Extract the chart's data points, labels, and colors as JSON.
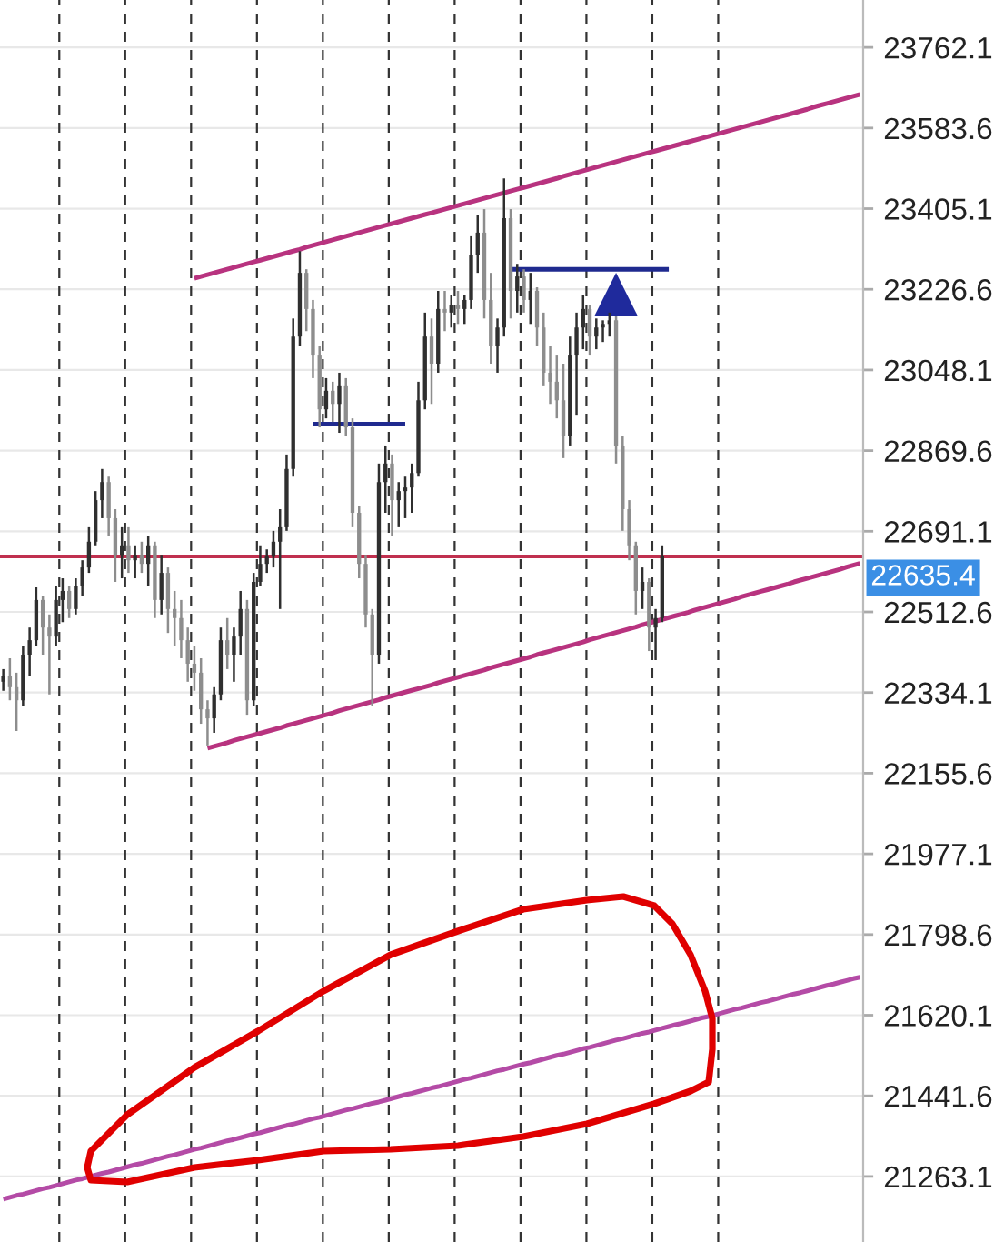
{
  "chart_data": {
    "type": "candlestick",
    "categories": [
      null,
      null,
      null,
      null,
      null,
      null,
      null,
      null,
      null,
      null,
      null,
      null,
      null,
      null,
      null,
      null,
      null,
      null,
      null,
      null,
      null,
      null,
      null,
      null,
      null,
      null,
      null,
      null,
      null,
      null,
      null,
      null,
      null,
      null,
      null,
      null,
      null,
      null,
      null,
      null,
      null,
      null,
      null,
      null,
      null,
      null,
      null,
      null,
      null,
      null,
      null,
      null,
      null,
      null,
      null,
      null,
      null,
      null,
      null,
      null,
      null,
      null,
      null,
      null,
      null,
      null,
      null,
      null,
      null,
      null,
      null,
      null,
      null,
      null,
      null,
      null,
      null,
      null,
      null,
      null,
      null,
      null,
      null,
      null,
      null,
      null,
      null,
      null,
      null,
      null,
      null,
      null,
      null,
      null,
      null,
      null,
      null,
      null,
      null,
      null,
      null,
      null,
      null,
      null,
      null,
      null,
      null,
      null,
      null,
      null,
      null,
      null,
      null,
      null,
      null,
      null,
      null,
      null,
      null,
      null,
      null,
      null,
      null,
      null,
      null,
      null,
      null,
      null,
      null,
      null,
      null
    ],
    "ohlc": [
      [
        22358,
        22386,
        22338,
        22370
      ],
      [
        22370,
        22410,
        22317,
        22346
      ],
      [
        22346,
        22378,
        22249,
        22317
      ],
      [
        22317,
        22438,
        22305,
        22418
      ],
      [
        22418,
        22478,
        22370,
        22450
      ],
      [
        22450,
        22567,
        22438,
        22539
      ],
      [
        22539,
        22547,
        22418,
        22478
      ],
      [
        22478,
        22507,
        22330,
        22458
      ],
      [
        22458,
        22571,
        22438,
        22539
      ],
      [
        22539,
        22587,
        22490,
        22559
      ],
      [
        22559,
        22571,
        22499,
        22519
      ],
      [
        22519,
        22587,
        22507,
        22571
      ],
      [
        22571,
        22627,
        22547,
        22611
      ],
      [
        22611,
        22700,
        22599,
        22668
      ],
      [
        22668,
        22780,
        22660,
        22760
      ],
      [
        22760,
        22829,
        22720,
        22800
      ],
      [
        22800,
        22812,
        22680,
        22720
      ],
      [
        22720,
        22740,
        22579,
        22639
      ],
      [
        22639,
        22700,
        22587,
        22660
      ],
      [
        22660,
        22700,
        22599,
        22627
      ],
      [
        22627,
        22660,
        22587,
        22639
      ],
      [
        22639,
        22668,
        22599,
        22619
      ],
      [
        22619,
        22680,
        22571,
        22660
      ],
      [
        22660,
        22668,
        22499,
        22539
      ],
      [
        22539,
        22639,
        22507,
        22599
      ],
      [
        22599,
        22611,
        22466,
        22519
      ],
      [
        22519,
        22559,
        22438,
        22499
      ],
      [
        22499,
        22539,
        22410,
        22450
      ],
      [
        22450,
        22478,
        22358,
        22398
      ],
      [
        22398,
        22438,
        22338,
        22378
      ],
      [
        22378,
        22410,
        22265,
        22297
      ],
      [
        22297,
        22317,
        22217,
        22277
      ],
      [
        22277,
        22346,
        22245,
        22330
      ],
      [
        22330,
        22478,
        22317,
        22450
      ],
      [
        22450,
        22499,
        22386,
        22418
      ],
      [
        22418,
        22478,
        22358,
        22458
      ],
      [
        22458,
        22559,
        22418,
        22519
      ],
      [
        22519,
        22539,
        22285,
        22317
      ],
      [
        22317,
        22599,
        22305,
        22579
      ],
      [
        22579,
        22660,
        22571,
        22619
      ],
      [
        22619,
        22651,
        22599,
        22635
      ],
      [
        22635,
        22692,
        22611,
        22668
      ],
      [
        22668,
        22740,
        22519,
        22700
      ],
      [
        22700,
        22861,
        22692,
        22829
      ],
      [
        22829,
        23162,
        22812,
        23122
      ],
      [
        23122,
        23311,
        23102,
        23263
      ],
      [
        23263,
        23271,
        23134,
        23183
      ],
      [
        23183,
        23203,
        23030,
        23082
      ],
      [
        23082,
        23102,
        22921,
        22961
      ],
      [
        22961,
        23030,
        22941,
        23002
      ],
      [
        23002,
        23022,
        22933,
        22973
      ],
      [
        22973,
        23042,
        22909,
        23014
      ],
      [
        23014,
        23030,
        22901,
        22921
      ],
      [
        22921,
        22941,
        22700,
        22732
      ],
      [
        22732,
        22748,
        22587,
        22619
      ],
      [
        22619,
        22639,
        22478,
        22507
      ],
      [
        22507,
        22519,
        22305,
        22418
      ],
      [
        22418,
        22841,
        22398,
        22800
      ],
      [
        22800,
        22881,
        22732,
        22841
      ],
      [
        22841,
        22861,
        22680,
        22760
      ],
      [
        22760,
        22800,
        22700,
        22780
      ],
      [
        22780,
        22812,
        22720,
        22788
      ],
      [
        22788,
        22841,
        22732,
        22820
      ],
      [
        22820,
        23022,
        22812,
        22981
      ],
      [
        22981,
        23175,
        22961,
        23122
      ],
      [
        23122,
        23162,
        22973,
        23062
      ],
      [
        23062,
        23223,
        23042,
        23183
      ],
      [
        23183,
        23223,
        23134,
        23175
      ],
      [
        23175,
        23215,
        23142,
        23191
      ],
      [
        23191,
        23223,
        23150,
        23183
      ],
      [
        23183,
        23215,
        23150,
        23203
      ],
      [
        23203,
        23344,
        23183,
        23303
      ],
      [
        23303,
        23392,
        23263,
        23352
      ],
      [
        23352,
        23404,
        23162,
        23203
      ],
      [
        23203,
        23263,
        23062,
        23102
      ],
      [
        23102,
        23162,
        23042,
        23142
      ],
      [
        23142,
        23472,
        23122,
        23384
      ],
      [
        23384,
        23404,
        23162,
        23223
      ],
      [
        23223,
        23283,
        23175,
        23255
      ],
      [
        23255,
        23271,
        23175,
        23203
      ],
      [
        23203,
        23263,
        23150,
        23223
      ],
      [
        23223,
        23231,
        23102,
        23142
      ],
      [
        23142,
        23175,
        23014,
        23042
      ],
      [
        23042,
        23102,
        22973,
        23022
      ],
      [
        23022,
        23082,
        22941,
        22981
      ],
      [
        22981,
        23062,
        22853,
        22901
      ],
      [
        22901,
        23122,
        22881,
        23082
      ],
      [
        23082,
        23175,
        22949,
        23142
      ],
      [
        23142,
        23215,
        23094,
        23183
      ],
      [
        23183,
        23191,
        23082,
        23122
      ],
      [
        23122,
        23162,
        23094,
        23142
      ],
      [
        23142,
        23158,
        23110,
        23150
      ],
      [
        23150,
        23175,
        23122,
        23158
      ],
      [
        23158,
        23167,
        22841,
        22881
      ],
      [
        22881,
        22901,
        22692,
        22740
      ],
      [
        22740,
        22760,
        22627,
        22660
      ],
      [
        22660,
        22668,
        22507,
        22559
      ],
      [
        22559,
        22611,
        22519,
        22579
      ],
      [
        22579,
        22587,
        22426,
        22478
      ],
      [
        22478,
        22519,
        22406,
        22499
      ],
      [
        22499,
        22660,
        22490,
        22635.4
      ],
      null,
      null,
      null,
      null,
      null,
      null,
      null,
      null,
      null,
      null,
      null,
      null,
      null,
      null,
      null,
      null,
      null,
      null,
      null,
      null,
      null,
      null,
      null,
      null,
      null,
      null,
      null,
      null,
      null,
      null
    ],
    "colors": [
      "#2f2f2f",
      "#8d8d8d",
      "#8d8d8d",
      "#2f2f2f",
      "#2f2f2f",
      "#2f2f2f",
      "#8d8d8d",
      "#8d8d8d",
      "#2f2f2f",
      "#2f2f2f",
      "#8d8d8d",
      "#2f2f2f",
      "#2f2f2f",
      "#2f2f2f",
      "#2f2f2f",
      "#2f2f2f",
      "#8d8d8d",
      "#8d8d8d",
      "#2f2f2f",
      "#8d8d8d",
      "#2f2f2f",
      "#8d8d8d",
      "#2f2f2f",
      "#8d8d8d",
      "#2f2f2f",
      "#8d8d8d",
      "#8d8d8d",
      "#8d8d8d",
      "#8d8d8d",
      "#8d8d8d",
      "#8d8d8d",
      "#8d8d8d",
      "#2f2f2f",
      "#2f2f2f",
      "#8d8d8d",
      "#2f2f2f",
      "#2f2f2f",
      "#8d8d8d",
      "#2f2f2f",
      "#2f2f2f",
      "#2f2f2f",
      "#2f2f2f",
      "#2f2f2f",
      "#2f2f2f",
      "#2f2f2f",
      "#2f2f2f",
      "#8d8d8d",
      "#8d8d8d",
      "#8d8d8d",
      "#2f2f2f",
      "#8d8d8d",
      "#2f2f2f",
      "#8d8d8d",
      "#8d8d8d",
      "#8d8d8d",
      "#8d8d8d",
      "#8d8d8d",
      "#2f2f2f",
      "#2f2f2f",
      "#8d8d8d",
      "#2f2f2f",
      "#2f2f2f",
      "#2f2f2f",
      "#2f2f2f",
      "#2f2f2f",
      "#8d8d8d",
      "#2f2f2f",
      "#8d8d8d",
      "#2f2f2f",
      "#8d8d8d",
      "#2f2f2f",
      "#2f2f2f",
      "#2f2f2f",
      "#8d8d8d",
      "#8d8d8d",
      "#2f2f2f",
      "#2f2f2f",
      "#8d8d8d",
      "#2f2f2f",
      "#8d8d8d",
      "#2f2f2f",
      "#8d8d8d",
      "#8d8d8d",
      "#8d8d8d",
      "#8d8d8d",
      "#8d8d8d",
      "#2f2f2f",
      "#2f2f2f",
      "#2f2f2f",
      "#8d8d8d",
      "#2f2f2f",
      "#2f2f2f",
      "#2f2f2f",
      "#8d8d8d",
      "#8d8d8d",
      "#8d8d8d",
      "#8d8d8d",
      "#2f2f2f",
      "#8d8d8d",
      "#2f2f2f",
      "#2f2f2f",
      null,
      null,
      null,
      null,
      null,
      null,
      null,
      null,
      null,
      null,
      null,
      null,
      null,
      null,
      null,
      null,
      null,
      null,
      null,
      null,
      null,
      null,
      null,
      null,
      null,
      null,
      null,
      null,
      null,
      null
    ],
    "series": [
      {
        "type": "line",
        "color": "#b8337f",
        "values": [
          null,
          null,
          null,
          null,
          null,
          null,
          null,
          null,
          null,
          null,
          null,
          null,
          null,
          null,
          null,
          null,
          null,
          null,
          null,
          null,
          null,
          null,
          null,
          null,
          null,
          null,
          null,
          null,
          null,
          23251,
          23255,
          23259,
          23263,
          23267,
          23271,
          23275,
          23279,
          23283,
          23287,
          23291,
          23295,
          23299,
          23303,
          23307,
          23311,
          23315,
          23320,
          23324,
          23328,
          23332,
          23336,
          23340,
          23344,
          23348,
          23352,
          23356,
          23360,
          23364,
          23368,
          23372,
          23376,
          23380,
          23384,
          23388,
          23392,
          23396,
          23400,
          23404,
          23408,
          23412,
          23416,
          23420,
          23424,
          23428,
          23432,
          23436,
          23440,
          23444,
          23448,
          23452,
          23456,
          23460,
          23464,
          23468,
          23472,
          23477,
          23481,
          23485,
          23489,
          23493,
          23497,
          23501,
          23505,
          23509,
          23513,
          23517,
          23521,
          23525,
          23529,
          23533,
          23537,
          23541,
          23545,
          23549,
          23553,
          23557,
          23561,
          23565,
          23569,
          23573,
          23577,
          23581,
          23585,
          23589,
          23593,
          23597,
          23601,
          23605,
          23609,
          23613,
          23617,
          23621,
          23625,
          23630,
          23634,
          23638,
          23642,
          23646,
          23650,
          23654,
          23658
        ]
      },
      {
        "type": "line",
        "color": "#b8337f",
        "values": [
          null,
          null,
          null,
          null,
          null,
          null,
          null,
          null,
          null,
          null,
          null,
          null,
          null,
          null,
          null,
          null,
          null,
          null,
          null,
          null,
          null,
          null,
          null,
          null,
          null,
          null,
          null,
          null,
          null,
          null,
          null,
          22211,
          22215,
          22219,
          22223,
          22228,
          22232,
          22236,
          22240,
          22244,
          22248,
          22252,
          22256,
          22261,
          22265,
          22269,
          22273,
          22277,
          22281,
          22285,
          22289,
          22294,
          22298,
          22302,
          22306,
          22310,
          22314,
          22318,
          22323,
          22327,
          22331,
          22335,
          22339,
          22343,
          22347,
          22351,
          22356,
          22360,
          22364,
          22368,
          22372,
          22376,
          22380,
          22384,
          22389,
          22393,
          22397,
          22401,
          22405,
          22409,
          22413,
          22418,
          22422,
          22426,
          22430,
          22434,
          22438,
          22442,
          22446,
          22451,
          22455,
          22459,
          22463,
          22467,
          22471,
          22475,
          22479,
          22484,
          22488,
          22492,
          22496,
          22500,
          22504,
          22508,
          22512,
          22517,
          22521,
          22525,
          22529,
          22533,
          22537,
          22541,
          22546,
          22550,
          22554,
          22558,
          22562,
          22566,
          22570,
          22574,
          22579,
          22583,
          22587,
          22591,
          22595,
          22599,
          22603,
          22607,
          22612,
          22616,
          22620
        ]
      },
      {
        "type": "line",
        "color": "#b44ba6",
        "values": [
          21213,
          21217,
          21221,
          21224,
          21228,
          21232,
          21236,
          21239,
          21243,
          21247,
          21251,
          21255,
          21258,
          21262,
          21266,
          21270,
          21273,
          21277,
          21281,
          21285,
          21289,
          21292,
          21296,
          21300,
          21304,
          21308,
          21311,
          21315,
          21319,
          21323,
          21326,
          21330,
          21334,
          21338,
          21342,
          21345,
          21349,
          21353,
          21357,
          21360,
          21364,
          21368,
          21372,
          21376,
          21379,
          21383,
          21387,
          21391,
          21394,
          21398,
          21402,
          21406,
          21410,
          21413,
          21417,
          21421,
          21425,
          21428,
          21432,
          21436,
          21440,
          21444,
          21447,
          21451,
          21455,
          21459,
          21462,
          21466,
          21470,
          21474,
          21478,
          21481,
          21485,
          21489,
          21493,
          21497,
          21500,
          21504,
          21508,
          21512,
          21515,
          21519,
          21523,
          21527,
          21531,
          21534,
          21538,
          21542,
          21546,
          21549,
          21553,
          21557,
          21561,
          21565,
          21568,
          21572,
          21576,
          21580,
          21583,
          21587,
          21591,
          21595,
          21599,
          21602,
          21606,
          21610,
          21614,
          21617,
          21621,
          21625,
          21629,
          21633,
          21636,
          21640,
          21644,
          21648,
          21651,
          21655,
          21659,
          21663,
          21667,
          21670,
          21674,
          21678,
          21682,
          21686,
          21689,
          21693,
          21697,
          21701,
          21704
        ]
      },
      {
        "type": "line",
        "color": "#1f2a8f",
        "values": [
          null,
          null,
          null,
          null,
          null,
          null,
          null,
          null,
          null,
          null,
          null,
          null,
          null,
          null,
          null,
          null,
          null,
          null,
          null,
          null,
          null,
          null,
          null,
          null,
          null,
          null,
          null,
          null,
          null,
          null,
          null,
          null,
          null,
          null,
          null,
          null,
          null,
          null,
          null,
          null,
          null,
          null,
          null,
          null,
          null,
          null,
          null,
          22928,
          22928,
          22928,
          22928,
          22928,
          22928,
          22928,
          22928,
          22928,
          22928,
          22928,
          22928,
          22928,
          22928,
          22928,
          null,
          null,
          null,
          null,
          null,
          null,
          null,
          null,
          null,
          null,
          null,
          null,
          null,
          null,
          null,
          null,
          null,
          null,
          null,
          null,
          null,
          null,
          null,
          null,
          null,
          null,
          null,
          null,
          null,
          null,
          null,
          null,
          null,
          null,
          null,
          null,
          null,
          null,
          null,
          null,
          null,
          null,
          null,
          null,
          null,
          null,
          null,
          null,
          null,
          null,
          null,
          null,
          null,
          null,
          null,
          null,
          null,
          null,
          null,
          null,
          null,
          null,
          null,
          null,
          null,
          null,
          null,
          null,
          null
        ]
      },
      {
        "type": "line",
        "color": "#1f2a8f",
        "values": [
          null,
          null,
          null,
          null,
          null,
          null,
          null,
          null,
          null,
          null,
          null,
          null,
          null,
          null,
          null,
          null,
          null,
          null,
          null,
          null,
          null,
          null,
          null,
          null,
          null,
          null,
          null,
          null,
          null,
          null,
          null,
          null,
          null,
          null,
          null,
          null,
          null,
          null,
          null,
          null,
          null,
          null,
          null,
          null,
          null,
          null,
          null,
          null,
          null,
          null,
          null,
          null,
          null,
          null,
          null,
          null,
          null,
          null,
          null,
          null,
          null,
          null,
          null,
          null,
          null,
          null,
          null,
          null,
          null,
          null,
          null,
          null,
          null,
          null,
          null,
          null,
          null,
          23271,
          23271,
          23271,
          23271,
          23271,
          23271,
          23271,
          23271,
          23271,
          23271,
          23271,
          23271,
          23271,
          23271,
          23271,
          23271,
          23271,
          23271,
          23271,
          23271,
          23271,
          23271,
          23271,
          23271,
          23271,
          null,
          null,
          null,
          null,
          null,
          null,
          null,
          null,
          null,
          null,
          null,
          null,
          null,
          null,
          null,
          null,
          null,
          null,
          null,
          null,
          null,
          null,
          null,
          null,
          null,
          null,
          null,
          null,
          null
        ]
      },
      {
        "type": "scatter",
        "marker": "triangle",
        "color": "#1f2a9c",
        "values": [
          null,
          null,
          null,
          null,
          null,
          null,
          null,
          null,
          null,
          null,
          null,
          null,
          null,
          null,
          null,
          null,
          null,
          null,
          null,
          null,
          null,
          null,
          null,
          null,
          null,
          null,
          null,
          null,
          null,
          null,
          null,
          null,
          null,
          null,
          null,
          null,
          null,
          null,
          null,
          null,
          null,
          null,
          null,
          null,
          null,
          null,
          null,
          null,
          null,
          null,
          null,
          null,
          null,
          null,
          null,
          null,
          null,
          null,
          null,
          null,
          null,
          null,
          null,
          null,
          null,
          null,
          null,
          null,
          null,
          null,
          null,
          null,
          null,
          null,
          null,
          null,
          null,
          null,
          null,
          null,
          null,
          null,
          null,
          null,
          null,
          null,
          null,
          null,
          null,
          null,
          null,
          null,
          null,
          23215,
          null,
          null,
          null,
          null,
          null,
          null,
          null,
          null,
          null,
          null,
          null,
          null,
          null,
          null,
          null,
          null,
          null,
          null,
          null,
          null,
          null,
          null,
          null,
          null,
          null,
          null,
          null,
          null,
          null,
          null,
          null,
          null,
          null,
          null,
          null,
          null,
          null
        ]
      }
    ],
    "ylim": [
      21118,
      23867
    ],
    "yticks": [
      23762.1,
      23583.6,
      23405.1,
      23226.6,
      23048.1,
      22869.6,
      22691.1,
      22512.6,
      22334.1,
      22155.6,
      21977.1,
      21798.6,
      21620.1,
      21441.6,
      21263.1
    ],
    "ref_lines": [
      {
        "axis": "y",
        "value": 22635.4,
        "label": "22635.4",
        "color": "#c0304f"
      }
    ],
    "grid": "y",
    "tick_labels": "y"
  }
}
